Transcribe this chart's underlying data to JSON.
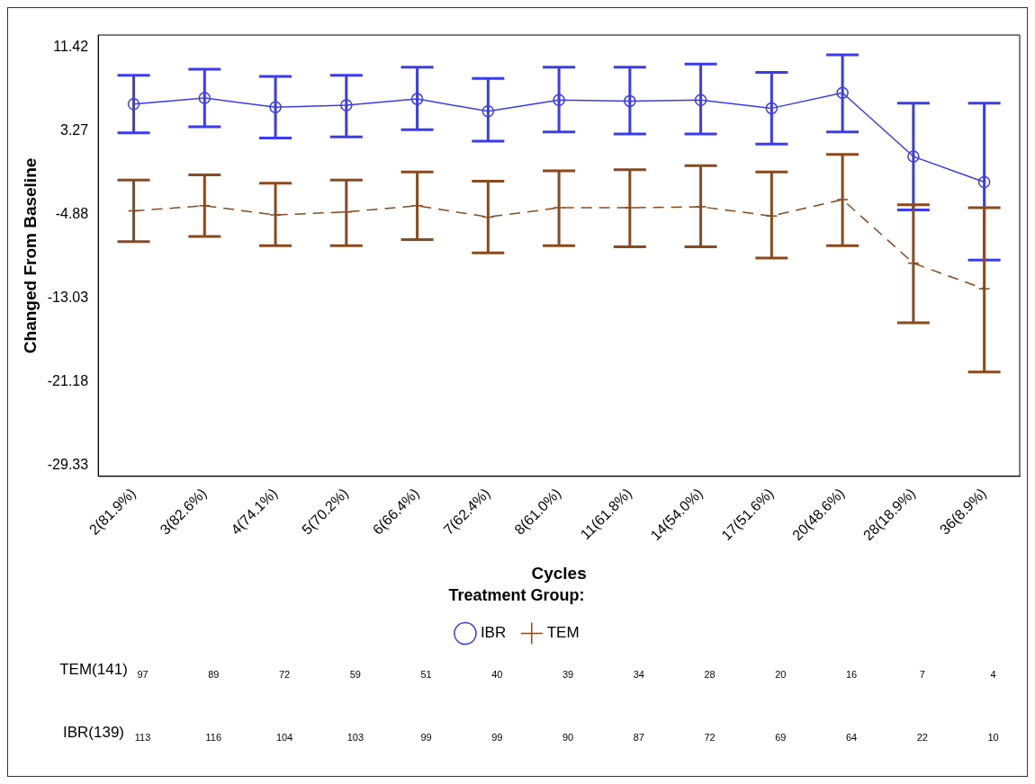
{
  "chart_data": {
    "type": "line",
    "xlabel": "Cycles",
    "ylabel": "Changed From Baseline",
    "legend_title": "Treatment Group:",
    "legend": "bottom",
    "grid": false,
    "categories": [
      "2(81.9%)",
      "3(82.6%)",
      "4(74.1%)",
      "5(70.2%)",
      "6(66.4%)",
      "7(62.4%)",
      "8(61.0%)",
      "11(61.8%)",
      "14(54.0%)",
      "17(51.6%)",
      "20(48.6%)",
      "28(18.9%)",
      "36(8.9%)"
    ],
    "ylim": [
      -30.37,
      12.63
    ],
    "yticks": [
      11.42,
      3.27,
      -4.88,
      -13.03,
      -21.18,
      -29.33
    ],
    "series": [
      {
        "name": "IBR",
        "color": "#3b3bf0",
        "marker": "circle",
        "line_style": "solid",
        "values": [
          5.9,
          6.5,
          5.6,
          5.8,
          6.4,
          5.2,
          6.3,
          6.2,
          6.3,
          5.5,
          7.0,
          0.8,
          -1.7
        ],
        "errors": [
          [
            3.1,
            8.7
          ],
          [
            3.7,
            9.3
          ],
          [
            2.6,
            8.6
          ],
          [
            2.7,
            8.7
          ],
          [
            3.4,
            9.5
          ],
          [
            2.3,
            8.4
          ],
          [
            3.2,
            9.5
          ],
          [
            3.0,
            9.5
          ],
          [
            3.0,
            9.8
          ],
          [
            2.0,
            9.0
          ],
          [
            3.2,
            10.7
          ],
          [
            -4.4,
            6.0
          ],
          [
            -9.3,
            6.0
          ]
        ]
      },
      {
        "name": "TEM",
        "color": "#8b4a1e",
        "marker": "cross",
        "line_style": "dashed",
        "values": [
          -4.5,
          -4.0,
          -4.9,
          -4.6,
          -4.0,
          -5.1,
          -4.2,
          -4.2,
          -4.1,
          -5.0,
          -3.4,
          -9.6,
          -12.1
        ],
        "errors": [
          [
            -7.5,
            -1.5
          ],
          [
            -7.0,
            -1.0
          ],
          [
            -7.9,
            -1.8
          ],
          [
            -7.9,
            -1.5
          ],
          [
            -7.3,
            -0.7
          ],
          [
            -8.6,
            -1.6
          ],
          [
            -7.9,
            -0.6
          ],
          [
            -8.0,
            -0.5
          ],
          [
            -8.0,
            -0.1
          ],
          [
            -9.1,
            -0.7
          ],
          [
            -7.9,
            1.0
          ],
          [
            -15.4,
            -3.9
          ],
          [
            -20.2,
            -4.2
          ]
        ]
      }
    ],
    "annotations": [
      "TEM(141)",
      "97",
      "89",
      "72",
      "59",
      "51",
      "40",
      "39",
      "34",
      "28",
      "20",
      "16",
      "7",
      "4",
      "IBR(139)",
      "113",
      "116",
      "104",
      "103",
      "99",
      "99",
      "90",
      "87",
      "72",
      "69",
      "64",
      "22",
      "10"
    ]
  }
}
